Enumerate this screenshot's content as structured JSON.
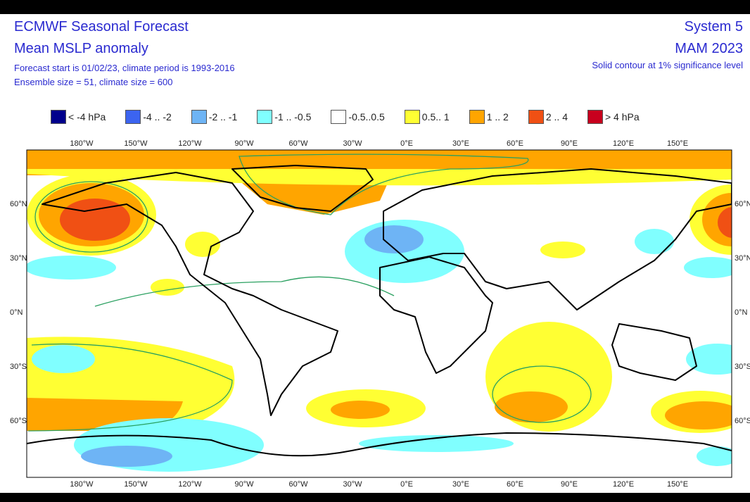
{
  "header": {
    "title": "ECMWF Seasonal Forecast",
    "subtitle": "Mean MSLP anomaly",
    "info1": "Forecast start is 01/02/23, climate period is 1993-2016",
    "info2": "Ensemble size = 51, climate size = 600",
    "system": "System 5",
    "season": "MAM 2023",
    "significance": "Solid contour at 1% significance level"
  },
  "legend": [
    {
      "label": "< -4 hPa",
      "color": "#00008c"
    },
    {
      "label": "-4 .. -2",
      "color": "#3c64f0"
    },
    {
      "label": "-2 .. -1",
      "color": "#6eb4f5"
    },
    {
      "label": "-1 .. -0.5",
      "color": "#80ffff"
    },
    {
      "label": "-0.5..0.5",
      "color": "#ffffff"
    },
    {
      "label": "0.5.. 1",
      "color": "#ffff33"
    },
    {
      "label": "1 .. 2",
      "color": "#ffa500"
    },
    {
      "label": "2 .. 4",
      "color": "#f05014"
    },
    {
      "label": "> 4 hPa",
      "color": "#c8001e"
    }
  ],
  "lon_labels": [
    "180°W",
    "150°W",
    "120°W",
    "90°W",
    "60°W",
    "30°W",
    "0°E",
    "30°E",
    "60°E",
    "90°E",
    "120°E",
    "150°E"
  ],
  "lat_labels": [
    "60°N",
    "30°N",
    "0°N",
    "30°S",
    "60°S"
  ]
}
